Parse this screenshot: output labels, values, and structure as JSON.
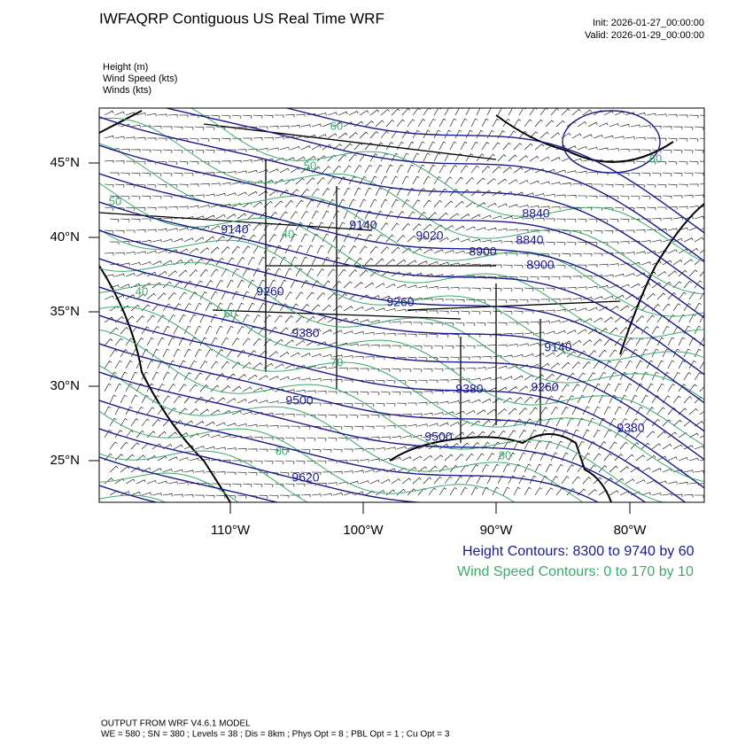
{
  "header": {
    "title": "IWFAQRP Contiguous US Real Time WRF",
    "init": "Init: 2026-01-27_00:00:00",
    "valid": "Valid: 2026-01-29_00:00:00"
  },
  "fields": [
    "Height   (m)",
    "Wind Speed   (kts)",
    "Winds   (kts)"
  ],
  "map": {
    "lat_labels": [
      "45°N",
      "40°N",
      "35°N",
      "30°N",
      "25°N"
    ],
    "lon_labels": [
      "110°W",
      "100°W",
      "90°W",
      "80°W"
    ],
    "height_labels": [
      "9140",
      "9140",
      "9020",
      "8900",
      "8840",
      "8840",
      "8900",
      "9260",
      "9260",
      "9380",
      "9140",
      "9380",
      "9260",
      "9500",
      "9500",
      "9380",
      "9620"
    ],
    "speed_labels": [
      "60",
      "50",
      "40",
      "50",
      "40",
      "60",
      "70",
      "60",
      "80",
      "60"
    ]
  },
  "legend": {
    "height": "Height Contours: 8300 to 9740 by 60",
    "wind": "Wind Speed Contours: 0 to 170 by 10"
  },
  "footer": {
    "line1": "OUTPUT FROM WRF V4.6.1 MODEL",
    "line2": "WE = 580 ; SN = 380 ; Levels = 38 ; Dis = 8km ; Phys Opt = 8 ; PBL Opt = 1 ; Cu Opt = 3"
  }
}
